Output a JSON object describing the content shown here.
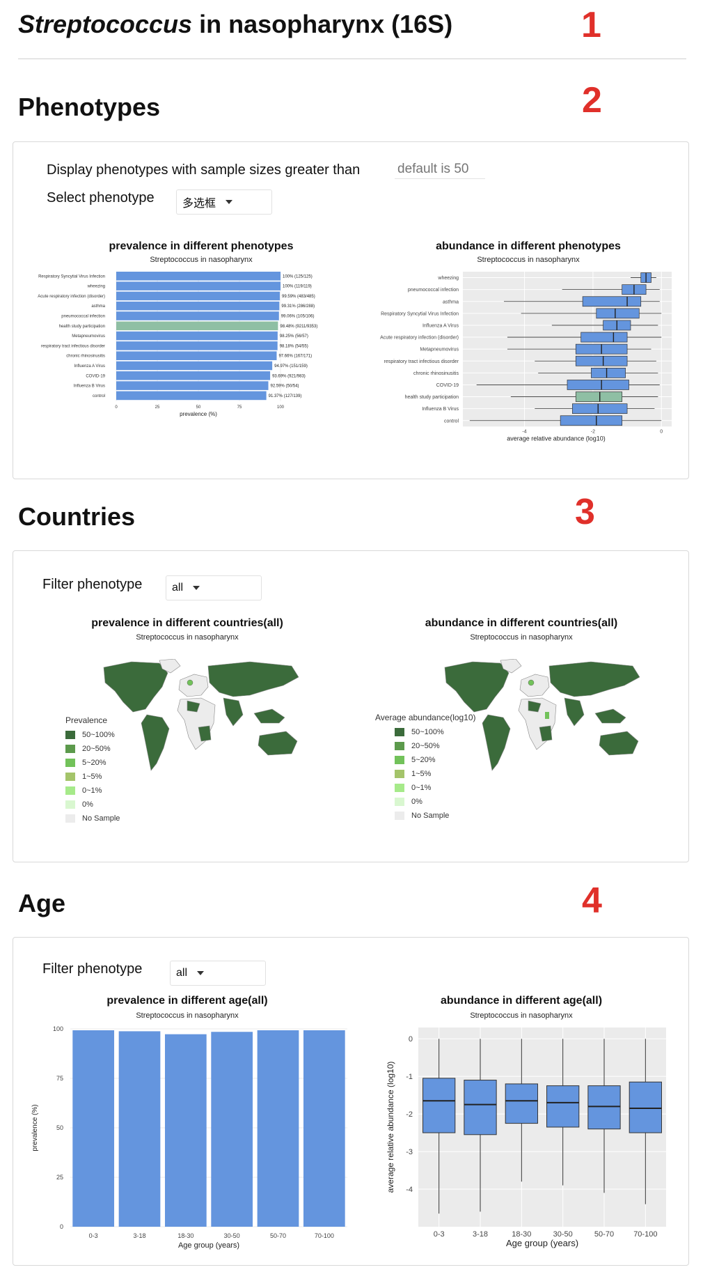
{
  "header": {
    "genus": "Streptococcus",
    "rest": " in nasopharynx (16S)",
    "marker": "1"
  },
  "phenotypes": {
    "title": "Phenotypes",
    "marker": "2",
    "size_label": "Display phenotypes with sample sizes greater than",
    "size_placeholder": "default is 50",
    "select_label": "Select phenotype",
    "select_value": "多选框",
    "prev_chart": {
      "title": "prevalence in different phenotypes",
      "subtitle": "Streptococcus in nasopharynx",
      "xlabel": "prevalence (%)",
      "ticks": [
        "0",
        "25",
        "50",
        "75",
        "100"
      ]
    },
    "abund_chart": {
      "title": "abundance in different phenotypes",
      "subtitle": "Streptococcus in nasopharynx",
      "xlabel": "average relative abundance (log10)",
      "ticks": [
        "-4",
        "-2",
        "0"
      ]
    }
  },
  "countries": {
    "title": "Countries",
    "marker": "3",
    "filter_label": "Filter phenotype",
    "filter_value": "all",
    "prev_map": {
      "title": "prevalence in different countries(all)",
      "subtitle": "Streptococcus in nasopharynx",
      "legend_title": "Prevalence"
    },
    "abund_map": {
      "title": "abundance in different countries(all)",
      "subtitle": "Streptococcus in nasopharynx",
      "legend_title": "Average abundance(log10)"
    },
    "legend": [
      {
        "label": "50~100%",
        "color": "#3b6b3b"
      },
      {
        "label": "20~50%",
        "color": "#5c9a4c"
      },
      {
        "label": "5~20%",
        "color": "#72c25a"
      },
      {
        "label": "1~5%",
        "color": "#a4c46a"
      },
      {
        "label": "0~1%",
        "color": "#a6ea8a"
      },
      {
        "label": "0%",
        "color": "#d9f7d0"
      },
      {
        "label": "No Sample",
        "color": "#ececec"
      }
    ]
  },
  "age": {
    "title": "Age",
    "marker": "4",
    "filter_label": "Filter phenotype",
    "filter_value": "all",
    "prev_chart": {
      "title": "prevalence in different age(all)",
      "subtitle": "Streptococcus in nasopharynx",
      "xlabel": "Age group (years)",
      "ylabel": "prevalence (%)",
      "yticks": [
        "0",
        "25",
        "50",
        "75",
        "100"
      ]
    },
    "abund_chart": {
      "title": "abundance in different age(all)",
      "subtitle": "Streptococcus in nasopharynx",
      "xlabel": "Age group (years)",
      "ylabel": "average relative abundance (log10)",
      "yticks": [
        "0",
        "-1",
        "-2",
        "-3",
        "-4"
      ]
    }
  },
  "colors": {
    "bar": "#6495de",
    "highlight": "#8fbfa4",
    "panel": "#ebebeb",
    "marker": "#e0302a",
    "map_dark": "#3b6b3b",
    "map_no": "#ececec"
  },
  "chart_data": [
    {
      "type": "bar",
      "orientation": "horizontal",
      "title": "prevalence in different phenotypes",
      "subtitle": "Streptococcus in nasopharynx",
      "xlabel": "prevalence (%)",
      "xlim": [
        0,
        100
      ],
      "categories": [
        "Respiratory Syncytial Virus Infection",
        "wheezing",
        "Acute respiratory infection (disorder)",
        "asthma",
        "pneumococcal infection",
        "health study participation",
        "Metapneumovirus",
        "respiratory tract infectious disorder",
        "chronic rhinosinusitis",
        "Influenza A Virus",
        "COVID-19",
        "Influenza B Virus",
        "control"
      ],
      "values": [
        100,
        100,
        99.59,
        99.31,
        99.06,
        98.48,
        98.25,
        98.18,
        97.66,
        94.97,
        93.69,
        92.59,
        91.37
      ],
      "labels": [
        "100% (125/125)",
        "100% (119/119)",
        "99.59% (483/485)",
        "99.31% (286/288)",
        "99.06% (105/106)",
        "98.48% (9211/9353)",
        "98.25% (56/57)",
        "98.18% (54/55)",
        "97.66% (167/171)",
        "94.97% (151/159)",
        "93.69% (921/983)",
        "92.59% (50/54)",
        "91.37% (127/139)"
      ],
      "highlight": "health study participation"
    },
    {
      "type": "box",
      "orientation": "horizontal",
      "title": "abundance in different phenotypes",
      "subtitle": "Streptococcus in nasopharynx",
      "xlabel": "average relative abundance (log10)",
      "xlim": [
        -5.8,
        0.3
      ],
      "categories": [
        "wheezing",
        "pneumococcal infection",
        "asthma",
        "Respiratory Syncytial Virus Infection",
        "Influenza A Virus",
        "Acute respiratory infection (disorder)",
        "Metapneumovirus",
        "respiratory tract infectious disorder",
        "chronic rhinosinusitis",
        "COVID-19",
        "health study participation",
        "Influenza B Virus",
        "control"
      ],
      "boxes": [
        {
          "min": -0.9,
          "q1": -0.6,
          "med": -0.45,
          "q3": -0.3,
          "max": -0.15
        },
        {
          "min": -2.9,
          "q1": -1.15,
          "med": -0.8,
          "q3": -0.45,
          "max": -0.05
        },
        {
          "min": -4.6,
          "q1": -2.3,
          "med": -1.0,
          "q3": -0.6,
          "max": -0.05
        },
        {
          "min": -4.1,
          "q1": -1.9,
          "med": -1.35,
          "q3": -0.65,
          "max": 0.0
        },
        {
          "min": -3.2,
          "q1": -1.7,
          "med": -1.3,
          "q3": -0.9,
          "max": -0.1
        },
        {
          "min": -4.5,
          "q1": -2.35,
          "med": -1.4,
          "q3": -1.0,
          "max": 0.0
        },
        {
          "min": -4.5,
          "q1": -2.5,
          "med": -1.75,
          "q3": -1.0,
          "max": -0.3
        },
        {
          "min": -3.7,
          "q1": -2.5,
          "med": -1.7,
          "q3": -1.0,
          "max": -0.15
        },
        {
          "min": -3.6,
          "q1": -2.05,
          "med": -1.6,
          "q3": -1.05,
          "max": -0.1
        },
        {
          "min": -5.4,
          "q1": -2.75,
          "med": -1.75,
          "q3": -0.95,
          "max": -0.05
        },
        {
          "min": -4.4,
          "q1": -2.5,
          "med": -1.8,
          "q3": -1.15,
          "max": -0.1
        },
        {
          "min": -3.7,
          "q1": -2.6,
          "med": -1.85,
          "q3": -1.0,
          "max": -0.2
        },
        {
          "min": -5.6,
          "q1": -2.95,
          "med": -1.9,
          "q3": -1.15,
          "max": 0.0
        }
      ]
    },
    {
      "type": "bar",
      "title": "prevalence in different age(all)",
      "subtitle": "Streptococcus in nasopharynx",
      "xlabel": "Age group (years)",
      "ylabel": "prevalence (%)",
      "ylim": [
        0,
        100
      ],
      "categories": [
        "0-3",
        "3-18",
        "18-30",
        "30-50",
        "50-70",
        "70-100"
      ],
      "values": [
        99.3,
        98.8,
        97.3,
        98.5,
        99.3,
        99.3
      ]
    },
    {
      "type": "box",
      "title": "abundance in different age(all)",
      "subtitle": "Streptococcus in nasopharynx",
      "xlabel": "Age group (years)",
      "ylabel": "average relative abundance (log10)",
      "ylim": [
        -5.0,
        0.3
      ],
      "categories": [
        "0-3",
        "3-18",
        "18-30",
        "30-50",
        "50-70",
        "70-100"
      ],
      "boxes": [
        {
          "min": -4.65,
          "q1": -2.5,
          "med": -1.65,
          "q3": -1.05,
          "max": 0.0
        },
        {
          "min": -4.6,
          "q1": -2.55,
          "med": -1.75,
          "q3": -1.1,
          "max": 0.0
        },
        {
          "min": -3.8,
          "q1": -2.25,
          "med": -1.65,
          "q3": -1.2,
          "max": 0.0
        },
        {
          "min": -3.9,
          "q1": -2.35,
          "med": -1.7,
          "q3": -1.25,
          "max": 0.0
        },
        {
          "min": -4.1,
          "q1": -2.4,
          "med": -1.8,
          "q3": -1.25,
          "max": 0.0
        },
        {
          "min": -4.4,
          "q1": -2.5,
          "med": -1.85,
          "q3": -1.15,
          "max": 0.0
        }
      ]
    }
  ]
}
